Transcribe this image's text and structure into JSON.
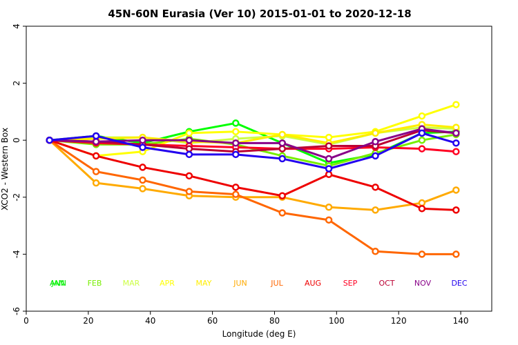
{
  "chart_data": {
    "type": "line",
    "title": "45N-60N Eurasia (Ver 10)   2015-01-01 to 2020-12-18",
    "xlabel": "Longitude (deg E)",
    "ylabel": "XCO2 - Western Box",
    "xlim": [
      0,
      150
    ],
    "ylim": [
      -6,
      4
    ],
    "xticks": [
      0,
      20,
      40,
      60,
      80,
      100,
      120,
      140
    ],
    "yticks": [
      -6,
      -4,
      -2,
      0,
      2,
      4
    ],
    "x": [
      7.5,
      22.5,
      37.5,
      52.5,
      67.5,
      82.5,
      97.5,
      112.5,
      127.5,
      138.5
    ],
    "legend": [
      {
        "name": "ANN",
        "color": "#00dd00"
      },
      {
        "name": "JAN",
        "color": "#00ff00"
      },
      {
        "name": "FEB",
        "color": "#77ee00"
      },
      {
        "name": "MAR",
        "color": "#ccff44"
      },
      {
        "name": "APR",
        "color": "#ffff00"
      },
      {
        "name": "MAY",
        "color": "#ffee00"
      },
      {
        "name": "JUN",
        "color": "#ffaa00"
      },
      {
        "name": "JUL",
        "color": "#ff6600"
      },
      {
        "name": "AUG",
        "color": "#ee0000"
      },
      {
        "name": "SEP",
        "color": "#ff0022"
      },
      {
        "name": "OCT",
        "color": "#bb0033"
      },
      {
        "name": "NOV",
        "color": "#880088"
      },
      {
        "name": "DEC",
        "color": "#2200ee"
      }
    ],
    "series": [
      {
        "name": "JAN",
        "color": "#00ff00",
        "values": [
          0,
          0.15,
          -0.1,
          0.3,
          0.6,
          -0.1,
          -0.8,
          -0.5,
          0.25,
          0.3
        ]
      },
      {
        "name": "FEB",
        "color": "#77ee00",
        "values": [
          0,
          -0.15,
          -0.15,
          0.05,
          -0.15,
          -0.55,
          -0.9,
          -0.45,
          0.0,
          0.2
        ]
      },
      {
        "name": "MAR",
        "color": "#ccff44",
        "values": [
          0,
          0.1,
          0.1,
          -0.1,
          0.05,
          0.15,
          -0.15,
          0.25,
          0.45,
          0.4
        ]
      },
      {
        "name": "APR",
        "color": "#ffff00",
        "values": [
          0,
          -0.55,
          -0.4,
          0.25,
          0.3,
          0.2,
          0.1,
          0.3,
          0.85,
          1.25
        ]
      },
      {
        "name": "MAY",
        "color": "#ffee00",
        "values": [
          0,
          0.05,
          0.1,
          -0.05,
          -0.1,
          0.2,
          -0.1,
          0.25,
          0.55,
          0.45
        ]
      },
      {
        "name": "JUN",
        "color": "#ffaa00",
        "values": [
          0,
          -1.5,
          -1.7,
          -1.95,
          -2.0,
          -2.0,
          -2.35,
          -2.45,
          -2.2,
          -1.75
        ]
      },
      {
        "name": "JUL",
        "color": "#ff6600",
        "values": [
          0,
          -1.1,
          -1.4,
          -1.8,
          -1.9,
          -2.55,
          -2.8,
          -3.9,
          -4.0,
          -4.0
        ]
      },
      {
        "name": "AUG",
        "color": "#ee0000",
        "values": [
          0,
          -0.55,
          -0.95,
          -1.25,
          -1.65,
          -1.95,
          -1.2,
          -1.65,
          -2.4,
          -2.45
        ]
      },
      {
        "name": "SEP",
        "color": "#ff0022",
        "values": [
          0,
          -0.1,
          -0.15,
          -0.2,
          -0.25,
          -0.3,
          -0.3,
          -0.25,
          -0.3,
          -0.4
        ]
      },
      {
        "name": "OCT",
        "color": "#bb0033",
        "values": [
          0,
          -0.05,
          -0.15,
          -0.3,
          -0.4,
          -0.3,
          -0.2,
          -0.2,
          0.35,
          0.25
        ]
      },
      {
        "name": "NOV",
        "color": "#880088",
        "values": [
          0,
          -0.05,
          0.0,
          0.0,
          -0.1,
          -0.1,
          -0.65,
          -0.05,
          0.4,
          0.25
        ]
      },
      {
        "name": "DEC",
        "color": "#2200ee",
        "values": [
          0,
          0.15,
          -0.25,
          -0.5,
          -0.5,
          -0.65,
          -1.0,
          -0.55,
          0.25,
          -0.1
        ]
      }
    ]
  }
}
